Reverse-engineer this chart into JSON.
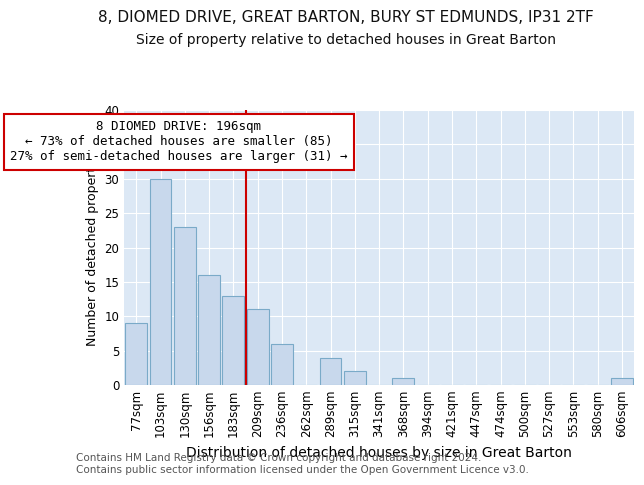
{
  "title1": "8, DIOMED DRIVE, GREAT BARTON, BURY ST EDMUNDS, IP31 2TF",
  "title2": "Size of property relative to detached houses in Great Barton",
  "xlabel": "Distribution of detached houses by size in Great Barton",
  "ylabel": "Number of detached properties",
  "categories": [
    "77sqm",
    "103sqm",
    "130sqm",
    "156sqm",
    "183sqm",
    "209sqm",
    "236sqm",
    "262sqm",
    "289sqm",
    "315sqm",
    "341sqm",
    "368sqm",
    "394sqm",
    "421sqm",
    "447sqm",
    "474sqm",
    "500sqm",
    "527sqm",
    "553sqm",
    "580sqm",
    "606sqm"
  ],
  "values": [
    9,
    30,
    23,
    16,
    13,
    11,
    6,
    0,
    4,
    2,
    0,
    1,
    0,
    0,
    0,
    0,
    0,
    0,
    0,
    0,
    1
  ],
  "bar_color": "#c8d8ec",
  "bar_edge_color": "#7aaac8",
  "vline_x_index": 4.5,
  "vline_color": "#cc0000",
  "annotation_line1": "8 DIOMED DRIVE: 196sqm",
  "annotation_line2": "← 73% of detached houses are smaller (85)",
  "annotation_line3": "27% of semi-detached houses are larger (31) →",
  "annotation_box_facecolor": "#ffffff",
  "annotation_box_edgecolor": "#cc0000",
  "ylim": [
    0,
    40
  ],
  "yticks": [
    0,
    5,
    10,
    15,
    20,
    25,
    30,
    35,
    40
  ],
  "footer": "Contains HM Land Registry data © Crown copyright and database right 2024.\nContains public sector information licensed under the Open Government Licence v3.0.",
  "bg_color": "#ffffff",
  "plot_bg_color": "#dce8f5",
  "grid_color": "#ffffff",
  "title1_fontsize": 11,
  "title2_fontsize": 10,
  "xlabel_fontsize": 10,
  "ylabel_fontsize": 9,
  "tick_fontsize": 8.5,
  "annot_fontsize": 9,
  "footer_fontsize": 7.5
}
